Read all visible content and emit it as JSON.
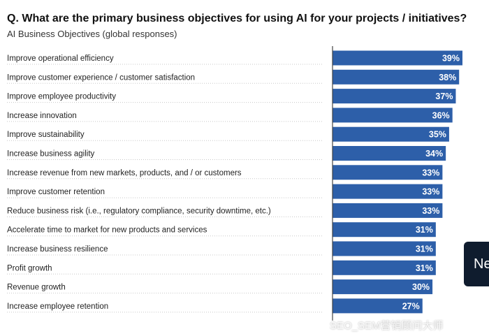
{
  "header": {
    "title": "Q. What are the primary business objectives for using AI for your projects / initiatives?",
    "subtitle": "AI Business Objectives (global responses)"
  },
  "chart_data": {
    "type": "bar",
    "orientation": "horizontal",
    "title": "Q. What are the primary business objectives for using AI for your projects / initiatives?",
    "subtitle": "AI Business Objectives (global responses)",
    "unit": "%",
    "categories": [
      "Improve operational efficiency",
      "Improve customer experience / customer satisfaction",
      "Improve employee productivity",
      "Increase innovation",
      "Improve sustainability",
      "Increase business agility",
      "Increase revenue from new markets, products, and / or customers",
      "Improve customer retention",
      "Reduce business risk (i.e., regulatory compliance, security downtime, etc.)",
      "Accelerate time to market for new products and services",
      "Increase business resilience",
      "Profit growth",
      "Revenue growth",
      "Increase employee retention"
    ],
    "values": [
      39,
      38,
      37,
      36,
      35,
      34,
      33,
      33,
      33,
      31,
      31,
      31,
      30,
      27
    ],
    "value_labels": [
      "39%",
      "38%",
      "37%",
      "36%",
      "35%",
      "34%",
      "33%",
      "33%",
      "33%",
      "31%",
      "31%",
      "31%",
      "30%",
      "27%"
    ],
    "bar_color": "#2d5fa9",
    "xlim": [
      0,
      100
    ]
  },
  "overlay": {
    "side_button_label": "Ne",
    "watermark": "SEO_SEM营销顾问大师"
  },
  "colors": {
    "bar": "#2d5fa9",
    "axis": "#444444",
    "dots": "#c8c8c8"
  }
}
